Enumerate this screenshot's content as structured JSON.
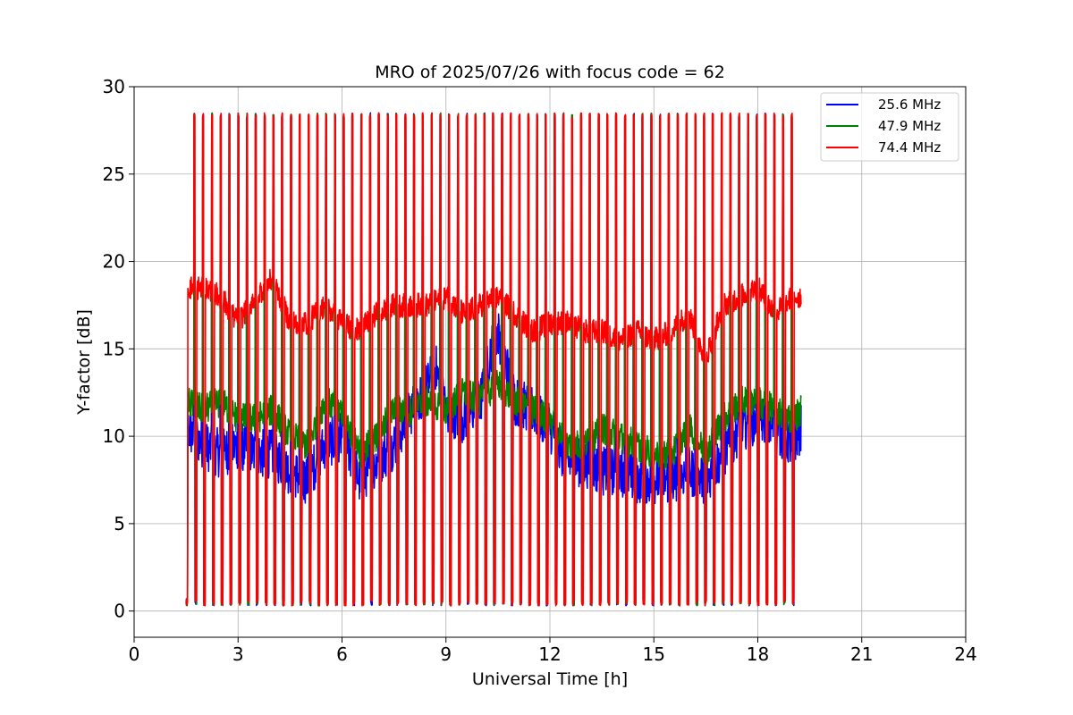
{
  "chart_data": {
    "type": "line",
    "title": "MRO of 2025/07/26 with focus code = 62",
    "xlabel": "Universal Time [h]",
    "ylabel": "Y-factor [dB]",
    "xlim": [
      0,
      24
    ],
    "ylim": [
      -1.5,
      30
    ],
    "xticks": [
      0,
      3,
      6,
      9,
      12,
      15,
      18,
      21,
      24
    ],
    "yticks": [
      0,
      5,
      10,
      15,
      20,
      25,
      30
    ],
    "grid": true,
    "legend_position": "top-right",
    "calibration_spikes": {
      "start_h": 1.5,
      "end_h": 19.0,
      "count": 70,
      "peak_db": 28.5,
      "floor_db": 0.3
    },
    "series": [
      {
        "name": "25.6 MHz",
        "color": "#0000ff",
        "x": [
          1.5,
          2.0,
          2.5,
          3.0,
          3.5,
          4.0,
          4.5,
          5.0,
          5.5,
          6.0,
          6.5,
          7.0,
          7.5,
          8.0,
          8.5,
          8.7,
          9.0,
          9.5,
          10.0,
          10.3,
          10.5,
          11.0,
          11.5,
          12.0,
          12.5,
          13.0,
          13.5,
          14.0,
          14.5,
          15.0,
          15.5,
          16.0,
          16.5,
          17.0,
          17.5,
          18.0,
          18.5,
          19.0,
          19.25
        ],
        "values": [
          10.5,
          9.5,
          9.0,
          9.5,
          9.0,
          9.0,
          8.0,
          7.5,
          9.5,
          10.0,
          7.5,
          8.5,
          9.5,
          11.5,
          13.0,
          14.0,
          11.5,
          11.0,
          12.0,
          15.0,
          16.0,
          12.0,
          11.5,
          10.5,
          8.5,
          8.5,
          8.0,
          8.0,
          7.5,
          7.5,
          7.5,
          8.0,
          7.5,
          9.0,
          10.5,
          11.0,
          10.5,
          9.5,
          10.5
        ]
      },
      {
        "name": "47.9 MHz",
        "color": "#008000",
        "x": [
          1.5,
          2.0,
          2.5,
          3.0,
          3.5,
          4.0,
          4.5,
          5.0,
          5.5,
          6.0,
          6.5,
          7.0,
          7.5,
          8.0,
          8.5,
          9.0,
          9.5,
          10.0,
          10.5,
          11.0,
          11.5,
          12.0,
          12.5,
          13.0,
          13.5,
          14.0,
          14.5,
          15.0,
          15.5,
          16.0,
          16.5,
          17.0,
          17.5,
          18.0,
          18.5,
          19.0,
          19.25
        ],
        "values": [
          12.0,
          11.5,
          12.0,
          11.0,
          11.0,
          11.5,
          10.0,
          9.5,
          12.0,
          11.5,
          9.0,
          10.0,
          11.5,
          11.5,
          12.0,
          11.5,
          12.5,
          12.0,
          13.0,
          12.0,
          11.5,
          11.0,
          9.5,
          9.5,
          10.5,
          10.0,
          9.5,
          9.0,
          9.0,
          10.5,
          9.0,
          11.0,
          12.0,
          12.0,
          11.5,
          11.0,
          11.5
        ]
      },
      {
        "name": "74.4 MHz",
        "color": "#ff0000",
        "x": [
          1.5,
          2.0,
          2.5,
          3.0,
          3.5,
          4.0,
          4.5,
          5.0,
          5.5,
          6.0,
          6.5,
          7.0,
          7.5,
          8.0,
          8.5,
          9.0,
          9.5,
          10.0,
          10.5,
          11.0,
          11.5,
          12.0,
          12.5,
          13.0,
          13.5,
          14.0,
          14.5,
          15.0,
          15.5,
          16.0,
          16.5,
          17.0,
          17.5,
          18.0,
          18.5,
          19.0,
          19.25
        ],
        "values": [
          18.5,
          18.5,
          18.0,
          16.5,
          18.0,
          19.0,
          16.5,
          16.5,
          17.5,
          16.5,
          16.0,
          17.0,
          17.5,
          17.5,
          17.5,
          18.0,
          17.0,
          17.5,
          18.0,
          17.0,
          16.0,
          16.5,
          16.5,
          16.0,
          16.0,
          15.5,
          16.0,
          15.5,
          16.0,
          17.0,
          14.5,
          17.5,
          18.0,
          18.5,
          17.0,
          18.0,
          18.0
        ]
      }
    ]
  }
}
